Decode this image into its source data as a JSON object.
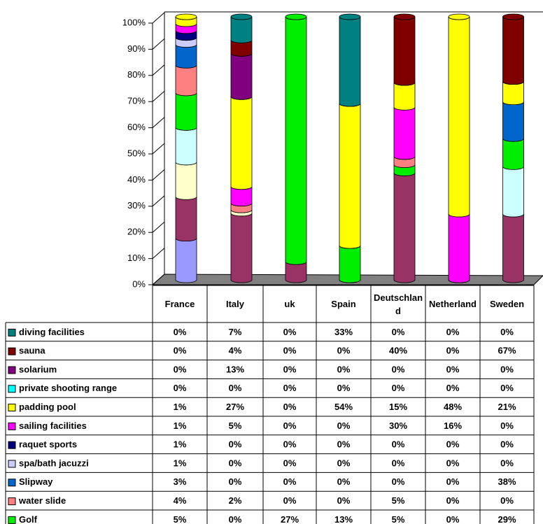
{
  "chart_data": {
    "type": "bar",
    "stacked": "percent",
    "categories": [
      "France",
      "Italy",
      "uk",
      "Spain",
      "Deutschland",
      "Netherland",
      "Sweden"
    ],
    "ylim": [
      0,
      100
    ],
    "yticks": [
      {
        "value": 0,
        "label": "0%"
      },
      {
        "value": 10,
        "label": "10%"
      },
      {
        "value": 20,
        "label": "20%"
      },
      {
        "value": 30,
        "label": "30%"
      },
      {
        "value": 40,
        "label": "40%"
      },
      {
        "value": 50,
        "label": "50%"
      },
      {
        "value": 60,
        "label": "60%"
      },
      {
        "value": 70,
        "label": "70%"
      },
      {
        "value": 80,
        "label": "80%"
      },
      {
        "value": 90,
        "label": "90%"
      },
      {
        "value": 100,
        "label": "100%"
      }
    ],
    "series": [
      {
        "color": "#9999ff",
        "values": [
          6,
          0,
          0,
          0,
          0,
          0,
          0
        ]
      },
      {
        "color": "#993366",
        "values": [
          6,
          20,
          2,
          0,
          65,
          0,
          68
        ]
      },
      {
        "color": "#ffffcc",
        "values": [
          5,
          1,
          0,
          0,
          0,
          0,
          0
        ]
      },
      {
        "color": "#ccffff",
        "values": [
          5,
          0,
          0,
          0,
          0,
          0,
          49
        ]
      },
      {
        "name": "Golf",
        "color": "#00ee00",
        "values": [
          5,
          0,
          27,
          13,
          5,
          0,
          29
        ],
        "value_labels": [
          "5%",
          "0%",
          "27%",
          "13%",
          "5%",
          "0%",
          "29%"
        ]
      },
      {
        "name": "water slide",
        "color": "#ff8080",
        "values": [
          4,
          2,
          0,
          0,
          5,
          0,
          0
        ],
        "value_labels": [
          "4%",
          "2%",
          "0%",
          "0%",
          "5%",
          "0%",
          "0%"
        ]
      },
      {
        "name": "Slipway",
        "color": "#0066cc",
        "values": [
          3,
          0,
          0,
          0,
          0,
          0,
          38
        ],
        "value_labels": [
          "3%",
          "0%",
          "0%",
          "0%",
          "0%",
          "0%",
          "38%"
        ]
      },
      {
        "name": "spa/bath jacuzzi",
        "color": "#ccccff",
        "values": [
          1,
          0,
          0,
          0,
          0,
          0,
          0
        ],
        "value_labels": [
          "1%",
          "0%",
          "0%",
          "0%",
          "0%",
          "0%",
          "0%"
        ]
      },
      {
        "name": "raquet sports",
        "color": "#000080",
        "values": [
          1,
          0,
          0,
          0,
          0,
          0,
          0
        ],
        "value_labels": [
          "1%",
          "0%",
          "0%",
          "0%",
          "0%",
          "0%",
          "0%"
        ]
      },
      {
        "name": "sailing facilities",
        "color": "#ff00ff",
        "values": [
          1,
          5,
          0,
          0,
          30,
          16,
          0
        ],
        "value_labels": [
          "1%",
          "5%",
          "0%",
          "0%",
          "30%",
          "16%",
          "0%"
        ]
      },
      {
        "name": "padding pool",
        "color": "#ffff00",
        "values": [
          1,
          27,
          0,
          54,
          15,
          48,
          21
        ],
        "value_labels": [
          "1%",
          "27%",
          "0%",
          "54%",
          "15%",
          "48%",
          "21%"
        ]
      },
      {
        "name": "private shooting range",
        "color": "#00ffff",
        "values": [
          0,
          0,
          0,
          0,
          0,
          0,
          0
        ],
        "value_labels": [
          "0%",
          "0%",
          "0%",
          "0%",
          "0%",
          "0%",
          "0%"
        ]
      },
      {
        "name": "solarium",
        "color": "#800080",
        "values": [
          0,
          13,
          0,
          0,
          0,
          0,
          0
        ],
        "value_labels": [
          "0%",
          "13%",
          "0%",
          "0%",
          "0%",
          "0%",
          "0%"
        ]
      },
      {
        "name": "sauna",
        "color": "#800000",
        "values": [
          0,
          4,
          0,
          0,
          40,
          0,
          67
        ],
        "value_labels": [
          "0%",
          "4%",
          "0%",
          "0%",
          "40%",
          "0%",
          "67%"
        ]
      },
      {
        "name": "diving facilities",
        "color": "#008080",
        "values": [
          0,
          7,
          0,
          33,
          0,
          0,
          0
        ],
        "value_labels": [
          "0%",
          "7%",
          "0%",
          "33%",
          "0%",
          "0%",
          "0%"
        ]
      }
    ]
  }
}
